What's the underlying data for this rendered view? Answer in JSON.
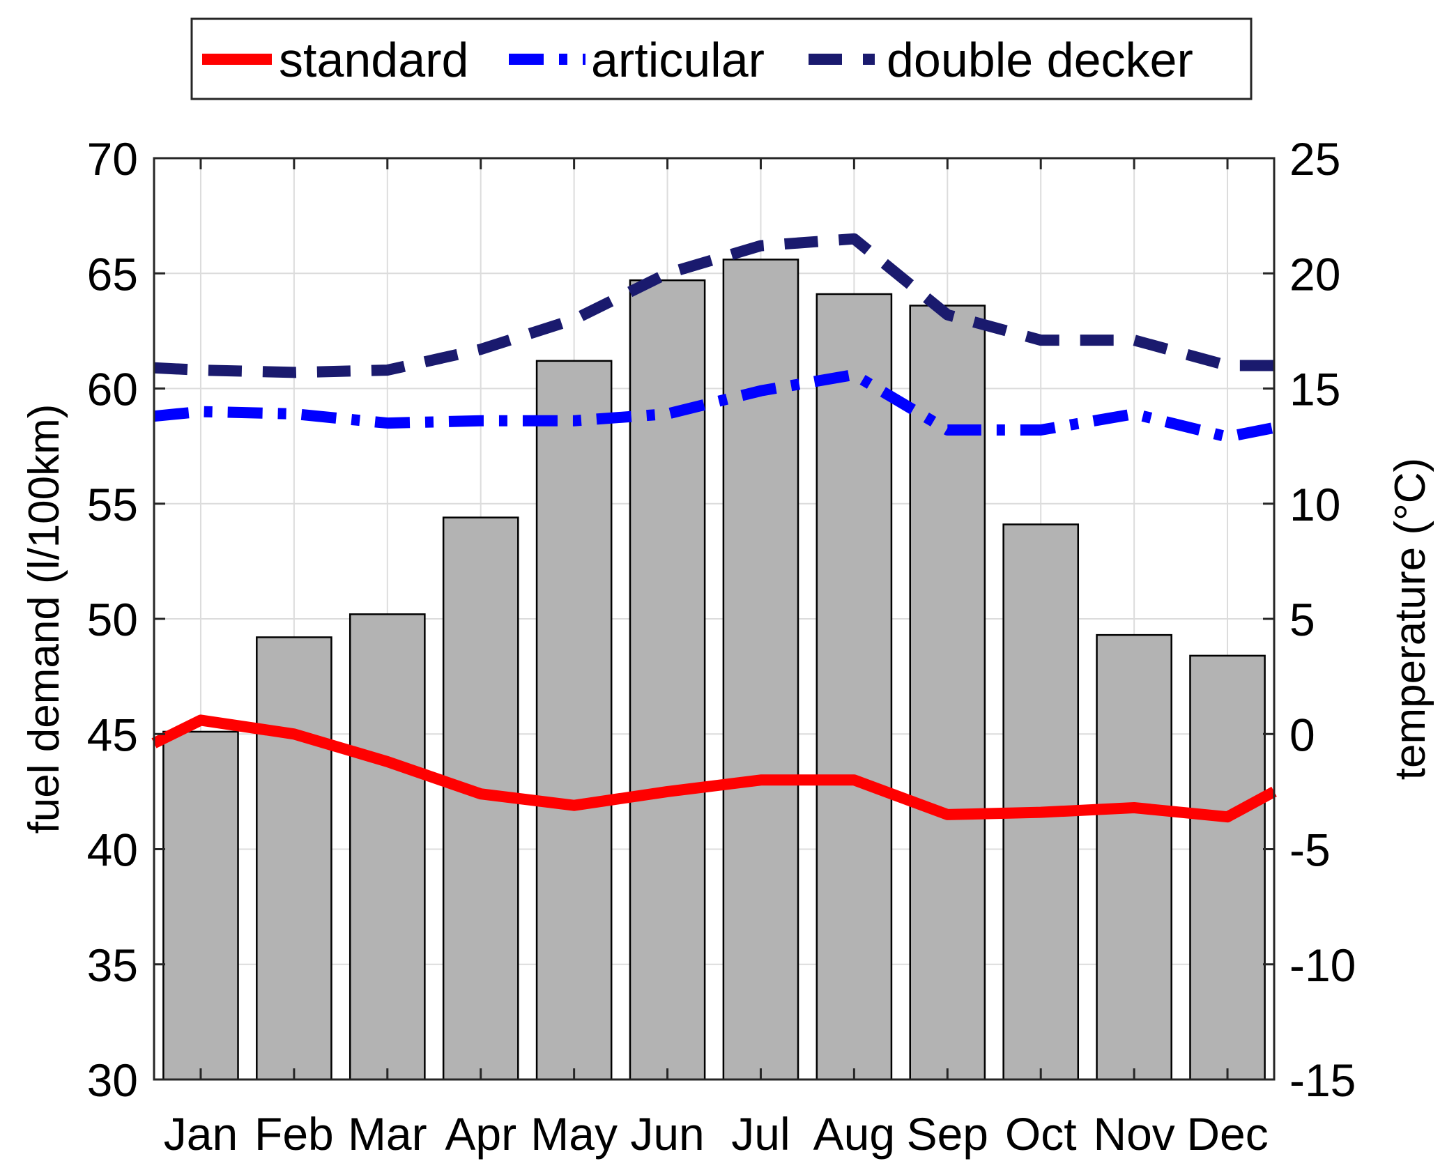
{
  "chart_data": {
    "type": "bar",
    "categories": [
      "Jan",
      "Feb",
      "Mar",
      "Apr",
      "May",
      "Jun",
      "Jul",
      "Aug",
      "Sep",
      "Oct",
      "Nov",
      "Dec"
    ],
    "bars": {
      "axis": "right",
      "values": [
        0.1,
        4.2,
        5.2,
        9.4,
        16.2,
        19.7,
        20.6,
        19.1,
        18.6,
        9.1,
        4.3,
        3.4
      ],
      "color": "#b3b3b3"
    },
    "series": [
      {
        "name": "standard",
        "axis": "left",
        "color": "#ff0000",
        "style": "solid",
        "x": [
          0.5,
          1,
          2,
          3,
          4,
          5,
          6,
          7,
          8,
          9,
          10,
          11,
          12,
          12.5
        ],
        "values": [
          44.6,
          45.6,
          45.0,
          43.8,
          42.4,
          41.9,
          42.5,
          43.0,
          43.0,
          41.5,
          41.6,
          41.8,
          41.4,
          42.5
        ]
      },
      {
        "name": "articular",
        "axis": "left",
        "color": "#0000ff",
        "style": "dash-dot",
        "x": [
          0.5,
          1,
          2,
          3,
          4,
          5,
          6,
          7,
          8,
          9,
          10,
          11,
          12,
          12.5
        ],
        "values": [
          58.8,
          59.0,
          58.9,
          58.5,
          58.6,
          58.6,
          58.9,
          59.9,
          60.6,
          58.2,
          58.2,
          58.9,
          57.9,
          58.3
        ]
      },
      {
        "name": "double decker",
        "axis": "left",
        "color": "#1a1a6e",
        "style": "dashed",
        "x": [
          0.5,
          1,
          2,
          3,
          4,
          5,
          6,
          7,
          8,
          9,
          10,
          11,
          12,
          12.5
        ],
        "values": [
          60.9,
          60.8,
          60.7,
          60.8,
          61.7,
          63.0,
          65.0,
          66.2,
          66.5,
          63.2,
          62.1,
          62.1,
          61.0,
          61.0
        ]
      }
    ],
    "ylabel": "fuel demand (l/100km)",
    "ylim": [
      30,
      70
    ],
    "yticks": [
      "30",
      "35",
      "40",
      "45",
      "50",
      "55",
      "60",
      "65",
      "70"
    ],
    "y2label": "temperature (°C)",
    "y2lim": [
      -15,
      25
    ],
    "y2ticks": [
      "-15",
      "-10",
      "-5",
      "0",
      "5",
      "10",
      "15",
      "20",
      "25"
    ],
    "grid": true,
    "legend": {
      "placement": "top-center",
      "orientation": "horizontal",
      "entries": [
        "standard",
        "articular",
        "double decker"
      ]
    }
  }
}
